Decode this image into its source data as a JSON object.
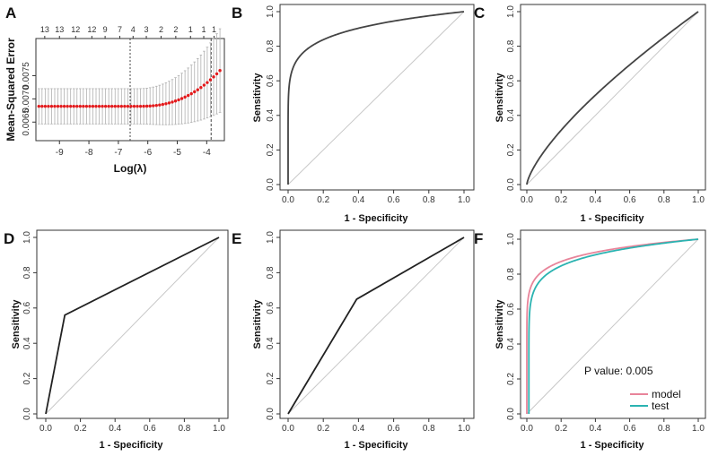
{
  "chart_data": [
    {
      "panel": "A",
      "type": "scatter",
      "xlabel": "Log(λ)",
      "ylabel": "Mean-Squared Error",
      "xlim": [
        -9.8,
        -3.4
      ],
      "ylim": [
        0.0061,
        0.0083
      ],
      "xticks": [
        -9,
        -8,
        -7,
        -6,
        -5,
        -4
      ],
      "xtick_labels": [
        "-9",
        "-8",
        "-7",
        "-6",
        "-5",
        "-4"
      ],
      "yticks": [
        0.0065,
        0.007,
        0.0075
      ],
      "ytick_labels": [
        "0.0065",
        "0.0070",
        "0.0075"
      ],
      "top_ticks": [
        -9.5,
        -9.0,
        -8.45,
        -7.9,
        -7.45,
        -6.95,
        -6.5,
        -6.05,
        -5.55,
        -5.05,
        -4.55,
        -4.1,
        -3.75
      ],
      "top_counts": [
        "13",
        "13",
        "12",
        "12",
        "9",
        "7",
        "4",
        "3",
        "2",
        "2",
        "1",
        "1",
        "1"
      ],
      "vlines": [
        -6.6,
        -3.85
      ],
      "grid": false,
      "points": {
        "x_start": -9.7,
        "x_end": -3.55,
        "n": 58,
        "y_flat": 0.00684,
        "ci_half_flat": 0.00038
      }
    },
    {
      "panel": "B",
      "type": "line",
      "xlabel": "1 - Specificity",
      "ylabel": "Sensitivity",
      "xlim": [
        0,
        1
      ],
      "ylim": [
        0,
        1
      ],
      "ticks": [
        0,
        0.2,
        0.4,
        0.6,
        0.8,
        1
      ],
      "tick_labels": [
        "0.0",
        "0.2",
        "0.4",
        "0.6",
        "0.8",
        "1.0"
      ],
      "curve": {
        "kind": "power",
        "exponent": 0.11
      },
      "series": [
        {
          "color": "#444444"
        }
      ],
      "diagonal": true
    },
    {
      "panel": "C",
      "type": "line",
      "xlabel": "1 - Specificity",
      "ylabel": "Sensitivity",
      "xlim": [
        0,
        1
      ],
      "ylim": [
        0,
        1
      ],
      "ticks": [
        0,
        0.2,
        0.4,
        0.6,
        0.8,
        1
      ],
      "tick_labels": [
        "0.0",
        "0.2",
        "0.4",
        "0.6",
        "0.8",
        "1.0"
      ],
      "curve": {
        "kind": "power",
        "exponent": 0.72
      },
      "series": [
        {
          "color": "#444444"
        }
      ],
      "diagonal": true
    },
    {
      "panel": "D",
      "type": "line",
      "xlabel": "1 - Specificity",
      "ylabel": "Sensitivity",
      "xlim": [
        0,
        1
      ],
      "ylim": [
        0,
        1
      ],
      "ticks": [
        0,
        0.2,
        0.4,
        0.6,
        0.8,
        1
      ],
      "tick_labels": [
        "0.0",
        "0.2",
        "0.4",
        "0.6",
        "0.8",
        "1.0"
      ],
      "curve": {
        "kind": "points",
        "x": [
          0,
          0.11,
          1
        ],
        "y": [
          0,
          0.56,
          1
        ]
      },
      "series": [
        {
          "color": "#222222"
        }
      ],
      "diagonal": true
    },
    {
      "panel": "E",
      "type": "line",
      "xlabel": "1 - Specificity",
      "ylabel": "Sensitivity",
      "xlim": [
        0,
        1
      ],
      "ylim": [
        0,
        1
      ],
      "ticks": [
        0,
        0.2,
        0.4,
        0.6,
        0.8,
        1
      ],
      "tick_labels": [
        "0.0",
        "0.2",
        "0.4",
        "0.6",
        "0.8",
        "1.0"
      ],
      "curve": {
        "kind": "points",
        "x": [
          0,
          0.39,
          1
        ],
        "y": [
          0,
          0.65,
          1
        ]
      },
      "series": [
        {
          "color": "#222222"
        }
      ],
      "diagonal": true
    },
    {
      "panel": "F",
      "type": "line",
      "xlabel": "1 - Specificity",
      "ylabel": "Sensitivity",
      "xlim": [
        0,
        1
      ],
      "ylim": [
        0,
        1
      ],
      "ticks": [
        0,
        0.2,
        0.4,
        0.6,
        0.8,
        1
      ],
      "tick_labels": [
        "0.0",
        "0.2",
        "0.4",
        "0.6",
        "0.8",
        "1.0"
      ],
      "series": [
        {
          "name": "model",
          "color": "#e8849a",
          "curve": {
            "kind": "power",
            "exponent": 0.085
          }
        },
        {
          "name": "test",
          "color": "#2bb3b1",
          "curve": {
            "kind": "power",
            "exponent": 0.1,
            "offset": 0.012
          }
        }
      ],
      "annotation": "P value: 0.005",
      "legend": "bottom-right",
      "diagonal": true
    }
  ]
}
